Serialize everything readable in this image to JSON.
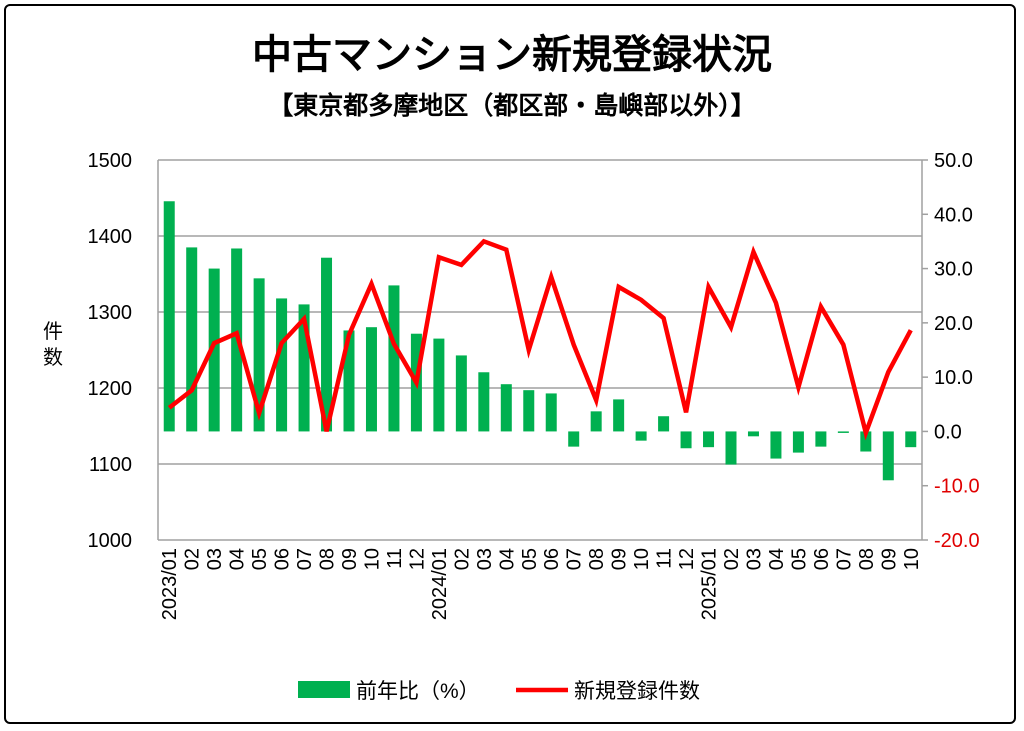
{
  "chart_data": {
    "type": "bar+line",
    "title": "中古マンション新規登録状況",
    "subtitle": "【東京都多摩地区（都区部・島嶼部以外）】",
    "ylabel": "件数",
    "categories": [
      "2023/01",
      "02",
      "03",
      "04",
      "05",
      "06",
      "07",
      "08",
      "09",
      "10",
      "11",
      "12",
      "2024/01",
      "02",
      "03",
      "04",
      "05",
      "06",
      "07",
      "08",
      "09",
      "10",
      "11",
      "12",
      "2025/01",
      "02",
      "03",
      "04",
      "05",
      "06",
      "07",
      "08",
      "09",
      "10"
    ],
    "left_axis": {
      "ylim": [
        1000,
        1500
      ],
      "ticks": [
        "1000",
        "1100",
        "1200",
        "1300",
        "1400",
        "1500"
      ]
    },
    "right_axis": {
      "ylim": [
        -20,
        50
      ],
      "ticks": [
        "-20.0",
        "-10.0",
        "0.0",
        "10.0",
        "20.0",
        "30.0",
        "40.0",
        "50.0"
      ]
    },
    "grid": true,
    "legend_position": "bottom",
    "series": [
      {
        "name": "前年比（%）",
        "type": "bar",
        "axis": "right",
        "color": "#00b050",
        "values": [
          42.4,
          33.9,
          30.0,
          33.7,
          28.2,
          24.5,
          23.4,
          32.0,
          18.6,
          19.2,
          26.9,
          18.0,
          17.1,
          14.0,
          10.9,
          8.7,
          7.6,
          7.0,
          -2.8,
          3.7,
          5.9,
          -1.7,
          2.8,
          -3.1,
          -2.9,
          -6.1,
          -0.9,
          -5.0,
          -3.9,
          -2.8,
          -0.2,
          -3.7,
          -9.0,
          -2.9
        ]
      },
      {
        "name": "新規登録件数",
        "type": "line",
        "axis": "left",
        "color": "#ff0000",
        "values": [
          1174,
          1197,
          1259,
          1272,
          1167,
          1259,
          1291,
          1143,
          1270,
          1337,
          1258,
          1207,
          1372,
          1362,
          1393,
          1382,
          1250,
          1346,
          1257,
          1184,
          1333,
          1316,
          1292,
          1168,
          1333,
          1280,
          1379,
          1312,
          1201,
          1307,
          1257,
          1141,
          1221,
          1276
        ]
      }
    ]
  }
}
